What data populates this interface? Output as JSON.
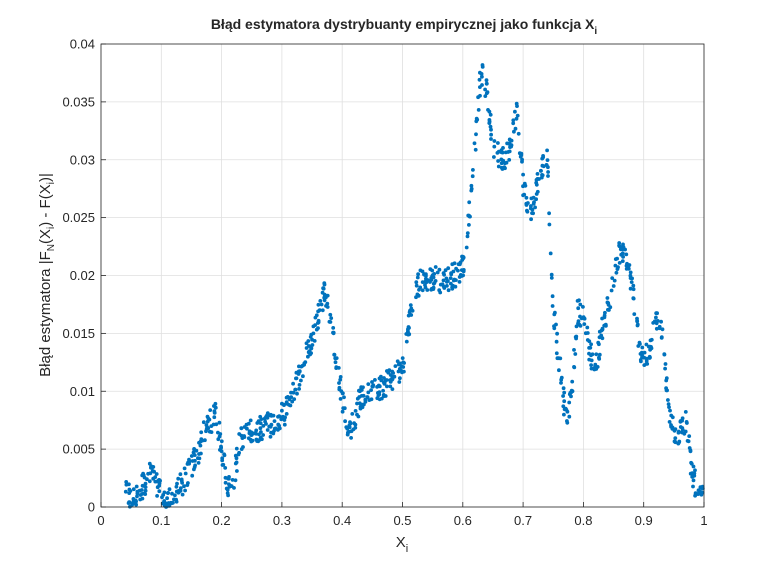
{
  "chart_data": {
    "type": "scatter",
    "title": "Błąd estymatora dystrybuanty empirycznej jako funkcja X",
    "title_subscript": "i",
    "xlabel": "X",
    "xlabel_subscript": "i",
    "ylabel_parts": [
      "Błąd estymatora |F",
      "N",
      "(X",
      "i",
      ") - F(X",
      "i",
      ")|"
    ],
    "xlim": [
      0,
      1
    ],
    "ylim": [
      0,
      0.04
    ],
    "xticks": [
      0,
      0.1,
      0.2,
      0.3,
      0.4,
      0.5,
      0.6,
      0.7,
      0.8,
      0.9,
      1
    ],
    "xtick_labels": [
      "0",
      "0.1",
      "0.2",
      "0.3",
      "0.4",
      "0.5",
      "0.6",
      "0.7",
      "0.8",
      "0.9",
      "1"
    ],
    "yticks": [
      0,
      0.005,
      0.01,
      0.015,
      0.02,
      0.025,
      0.03,
      0.035,
      0.04
    ],
    "ytick_labels": [
      "0",
      "0.005",
      "0.01",
      "0.015",
      "0.02",
      "0.025",
      "0.03",
      "0.035",
      "0.04"
    ],
    "grid": true,
    "marker_color": "#0072BD",
    "envelope": [
      [
        0.04,
        0.0015
      ],
      [
        0.05,
        0.0005
      ],
      [
        0.06,
        0.001
      ],
      [
        0.08,
        0.0028
      ],
      [
        0.09,
        0.0026
      ],
      [
        0.1,
        0.0008
      ],
      [
        0.11,
        0.0003
      ],
      [
        0.12,
        0.0008
      ],
      [
        0.14,
        0.0025
      ],
      [
        0.16,
        0.0045
      ],
      [
        0.17,
        0.0062
      ],
      [
        0.18,
        0.0072
      ],
      [
        0.19,
        0.0083
      ],
      [
        0.2,
        0.005
      ],
      [
        0.21,
        0.002
      ],
      [
        0.22,
        0.002
      ],
      [
        0.23,
        0.006
      ],
      [
        0.25,
        0.0065
      ],
      [
        0.27,
        0.007
      ],
      [
        0.29,
        0.0072
      ],
      [
        0.31,
        0.0085
      ],
      [
        0.33,
        0.0115
      ],
      [
        0.35,
        0.0145
      ],
      [
        0.37,
        0.0185
      ],
      [
        0.38,
        0.0165
      ],
      [
        0.39,
        0.013
      ],
      [
        0.4,
        0.0095
      ],
      [
        0.41,
        0.0065
      ],
      [
        0.42,
        0.0075
      ],
      [
        0.43,
        0.0095
      ],
      [
        0.45,
        0.0098
      ],
      [
        0.47,
        0.0105
      ],
      [
        0.49,
        0.0115
      ],
      [
        0.5,
        0.012
      ],
      [
        0.51,
        0.0155
      ],
      [
        0.52,
        0.0185
      ],
      [
        0.53,
        0.0195
      ],
      [
        0.55,
        0.0198
      ],
      [
        0.57,
        0.0195
      ],
      [
        0.59,
        0.0202
      ],
      [
        0.6,
        0.0208
      ],
      [
        0.61,
        0.025
      ],
      [
        0.62,
        0.031
      ],
      [
        0.63,
        0.0375
      ],
      [
        0.64,
        0.036
      ],
      [
        0.65,
        0.031
      ],
      [
        0.67,
        0.03
      ],
      [
        0.68,
        0.0315
      ],
      [
        0.69,
        0.0345
      ],
      [
        0.7,
        0.028
      ],
      [
        0.71,
        0.025
      ],
      [
        0.72,
        0.027
      ],
      [
        0.73,
        0.0295
      ],
      [
        0.74,
        0.03
      ],
      [
        0.75,
        0.017
      ],
      [
        0.76,
        0.0125
      ],
      [
        0.77,
        0.008
      ],
      [
        0.78,
        0.009
      ],
      [
        0.79,
        0.017
      ],
      [
        0.8,
        0.0165
      ],
      [
        0.81,
        0.0135
      ],
      [
        0.82,
        0.012
      ],
      [
        0.83,
        0.015
      ],
      [
        0.85,
        0.0195
      ],
      [
        0.86,
        0.022
      ],
      [
        0.87,
        0.0215
      ],
      [
        0.88,
        0.0195
      ],
      [
        0.89,
        0.015
      ],
      [
        0.9,
        0.0125
      ],
      [
        0.91,
        0.0135
      ],
      [
        0.92,
        0.016
      ],
      [
        0.93,
        0.0155
      ],
      [
        0.94,
        0.009
      ],
      [
        0.95,
        0.0065
      ],
      [
        0.96,
        0.0065
      ],
      [
        0.97,
        0.0075
      ],
      [
        0.98,
        0.003
      ],
      [
        0.99,
        0.0012
      ],
      [
        1.0,
        0.0005
      ]
    ]
  }
}
